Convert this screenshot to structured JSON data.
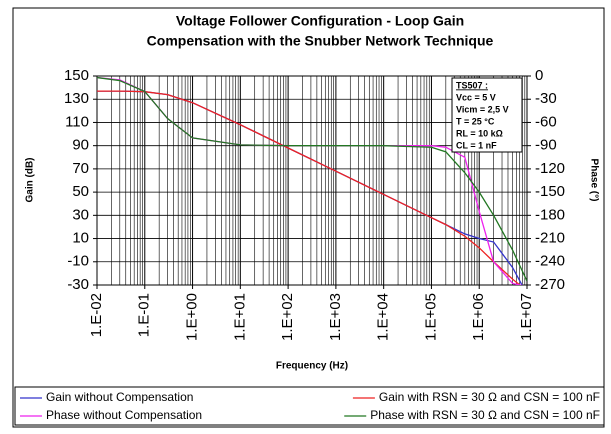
{
  "chart_data": {
    "type": "line",
    "title": [
      "Voltage Follower Configuration - Loop Gain",
      "Compensation with the Snubber Network Technique"
    ],
    "x_label": "Frequency (Hz)",
    "y_label": "Gain (dB)",
    "y2_label": "Phase (°)",
    "x_log": true,
    "grid": true,
    "legend": "bottom",
    "xlim": [
      0.01,
      10000000
    ],
    "xticks": [
      {
        "value": 0.01,
        "label": "1.E-02"
      },
      {
        "value": 0.1,
        "label": "1.E-01"
      },
      {
        "value": 1,
        "label": "1.E+00"
      },
      {
        "value": 10,
        "label": "1.E+01"
      },
      {
        "value": 100,
        "label": "1.E+02"
      },
      {
        "value": 1000,
        "label": "1.E+03"
      },
      {
        "value": 10000,
        "label": "1.E+04"
      },
      {
        "value": 100000,
        "label": "1.E+05"
      },
      {
        "value": 1000000,
        "label": "1.E+06"
      },
      {
        "value": 10000000,
        "label": "1.E+07"
      }
    ],
    "ylim": [
      -30,
      150
    ],
    "yticks": [
      150,
      130,
      110,
      90,
      70,
      50,
      30,
      10,
      -10,
      -30
    ],
    "y2lim": [
      -270,
      0
    ],
    "y2ticks": [
      0,
      -30,
      -60,
      -90,
      -120,
      -150,
      -180,
      -210,
      -240,
      -270
    ],
    "x": [
      0.01,
      0.03,
      0.1,
      0.3,
      1,
      10,
      100,
      1000,
      10000,
      100000,
      200000,
      500000,
      1000000,
      2000000,
      5000000,
      10000000
    ],
    "series": [
      {
        "name": "Gain without Compensation",
        "color": "#3333cc",
        "values": [
          137,
          137,
          136.5,
          134,
          127,
          108,
          88,
          68,
          48,
          28,
          22,
          14,
          10,
          7,
          -15,
          -38
        ]
      },
      {
        "name": "Gain with RSN = 30 Ω and CSN = 100 nF",
        "color": "#ee2222",
        "values": [
          137,
          137,
          136.5,
          134,
          127,
          108,
          88,
          68,
          48,
          28,
          22,
          12,
          2,
          -10,
          -25,
          -35
        ]
      },
      {
        "name": "Phase without Compensation",
        "color": "#ee22ee",
        "axis": "y2",
        "values": [
          -2,
          -5,
          -20,
          -55,
          -80,
          -89,
          -90,
          -90,
          -90,
          -90,
          -92,
          -105,
          -175,
          -240,
          -268,
          -272
        ]
      },
      {
        "name": "Phase with RSN = 30 Ω and CSN = 100 nF",
        "color": "#227722",
        "axis": "y2",
        "values": [
          -2,
          -6,
          -20,
          -55,
          -80,
          -89,
          -90,
          -90,
          -90,
          -92,
          -98,
          -125,
          -150,
          -180,
          -225,
          -265
        ]
      }
    ],
    "annotation": [
      "TS507 :",
      "Vcc = 5 V",
      "Vicm = 2,5 V",
      "T = 25 °C",
      "RL = 10 kΩ",
      "CL = 1 nF"
    ]
  }
}
